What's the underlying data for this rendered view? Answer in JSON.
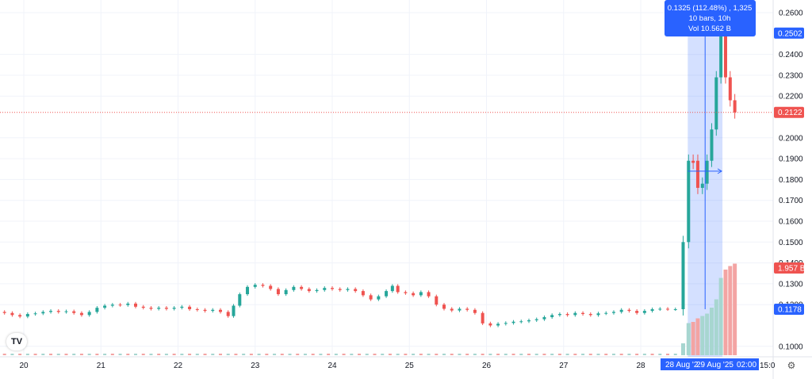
{
  "chart_data": {
    "type": "candlestick",
    "price_axis": {
      "ticks": [
        "0.2600",
        "0.2400",
        "0.2300",
        "0.2200",
        "0.2000",
        "0.1900",
        "0.1800",
        "0.1700",
        "0.1600",
        "0.1500",
        "0.1400",
        "0.1300",
        "0.1200",
        "0.1000"
      ],
      "ylim": [
        0.095,
        0.262
      ]
    },
    "time_axis": {
      "ticks": [
        "20",
        "21",
        "22",
        "23",
        "24",
        "25",
        "26",
        "27",
        "28"
      ],
      "range_labels": [
        "28 Aug '2",
        "29 Aug '25",
        "02:00",
        "15:0"
      ]
    },
    "price_tags": {
      "measure_high": "0.2502",
      "last_price": "0.2122",
      "measure_low": "0.1178",
      "volume": "1.957 B"
    },
    "measure_tooltip": {
      "line1": "0.1325 (112.48%) , 1,325",
      "line2": "10 bars, 10h",
      "line3": "Vol 10.562 B"
    },
    "candles": [
      {
        "d": 19.75,
        "o": 0.1165,
        "c": 0.116
      },
      {
        "d": 19.85,
        "o": 0.116,
        "c": 0.115
      },
      {
        "d": 19.95,
        "o": 0.115,
        "c": 0.1143
      },
      {
        "d": 20.05,
        "o": 0.1143,
        "c": 0.1155
      },
      {
        "d": 20.15,
        "o": 0.1155,
        "c": 0.1158
      },
      {
        "d": 20.25,
        "o": 0.1158,
        "c": 0.1165
      },
      {
        "d": 20.35,
        "o": 0.1165,
        "c": 0.117
      },
      {
        "d": 20.45,
        "o": 0.117,
        "c": 0.1165
      },
      {
        "d": 20.55,
        "o": 0.1165,
        "c": 0.1168
      },
      {
        "d": 20.65,
        "o": 0.1168,
        "c": 0.116
      },
      {
        "d": 20.75,
        "o": 0.116,
        "c": 0.115
      },
      {
        "d": 20.85,
        "o": 0.115,
        "c": 0.1165
      },
      {
        "d": 20.95,
        "o": 0.1165,
        "c": 0.1185
      },
      {
        "d": 21.05,
        "o": 0.1185,
        "c": 0.1195
      },
      {
        "d": 21.15,
        "o": 0.1195,
        "c": 0.12
      },
      {
        "d": 21.25,
        "o": 0.12,
        "c": 0.1198
      },
      {
        "d": 21.35,
        "o": 0.1198,
        "c": 0.1205
      },
      {
        "d": 21.45,
        "o": 0.1205,
        "c": 0.119
      },
      {
        "d": 21.55,
        "o": 0.119,
        "c": 0.1185
      },
      {
        "d": 21.65,
        "o": 0.1185,
        "c": 0.118
      },
      {
        "d": 21.75,
        "o": 0.118,
        "c": 0.1185
      },
      {
        "d": 21.85,
        "o": 0.1185,
        "c": 0.118
      },
      {
        "d": 21.95,
        "o": 0.118,
        "c": 0.1185
      },
      {
        "d": 22.05,
        "o": 0.1185,
        "c": 0.119
      },
      {
        "d": 22.15,
        "o": 0.119,
        "c": 0.1178
      },
      {
        "d": 22.25,
        "o": 0.1178,
        "c": 0.1175
      },
      {
        "d": 22.35,
        "o": 0.1175,
        "c": 0.117
      },
      {
        "d": 22.45,
        "o": 0.117,
        "c": 0.1175
      },
      {
        "d": 22.55,
        "o": 0.1175,
        "c": 0.1165
      },
      {
        "d": 22.65,
        "o": 0.1165,
        "c": 0.1145
      },
      {
        "d": 22.72,
        "o": 0.1145,
        "c": 0.1195
      },
      {
        "d": 22.8,
        "o": 0.1195,
        "c": 0.125
      },
      {
        "d": 22.9,
        "o": 0.125,
        "c": 0.1285
      },
      {
        "d": 23.0,
        "o": 0.1285,
        "c": 0.1295
      },
      {
        "d": 23.1,
        "o": 0.1295,
        "c": 0.129
      },
      {
        "d": 23.2,
        "o": 0.129,
        "c": 0.1275
      },
      {
        "d": 23.3,
        "o": 0.1275,
        "c": 0.125
      },
      {
        "d": 23.4,
        "o": 0.125,
        "c": 0.127
      },
      {
        "d": 23.5,
        "o": 0.127,
        "c": 0.1285
      },
      {
        "d": 23.6,
        "o": 0.1285,
        "c": 0.1275
      },
      {
        "d": 23.7,
        "o": 0.1275,
        "c": 0.1265
      },
      {
        "d": 23.8,
        "o": 0.1265,
        "c": 0.127
      },
      {
        "d": 23.9,
        "o": 0.127,
        "c": 0.128
      },
      {
        "d": 24.0,
        "o": 0.128,
        "c": 0.1275
      },
      {
        "d": 24.1,
        "o": 0.1275,
        "c": 0.127
      },
      {
        "d": 24.2,
        "o": 0.127,
        "c": 0.1275
      },
      {
        "d": 24.3,
        "o": 0.1275,
        "c": 0.1265
      },
      {
        "d": 24.4,
        "o": 0.1265,
        "c": 0.1245
      },
      {
        "d": 24.5,
        "o": 0.1245,
        "c": 0.1225
      },
      {
        "d": 24.6,
        "o": 0.1225,
        "c": 0.124
      },
      {
        "d": 24.7,
        "o": 0.124,
        "c": 0.1265
      },
      {
        "d": 24.78,
        "o": 0.1265,
        "c": 0.129
      },
      {
        "d": 24.85,
        "o": 0.129,
        "c": 0.126
      },
      {
        "d": 24.95,
        "o": 0.126,
        "c": 0.1255
      },
      {
        "d": 25.05,
        "o": 0.1255,
        "c": 0.1245
      },
      {
        "d": 25.15,
        "o": 0.1245,
        "c": 0.126
      },
      {
        "d": 25.25,
        "o": 0.126,
        "c": 0.124
      },
      {
        "d": 25.35,
        "o": 0.124,
        "c": 0.12
      },
      {
        "d": 25.45,
        "o": 0.12,
        "c": 0.118
      },
      {
        "d": 25.55,
        "o": 0.118,
        "c": 0.1172
      },
      {
        "d": 25.65,
        "o": 0.1172,
        "c": 0.118
      },
      {
        "d": 25.75,
        "o": 0.118,
        "c": 0.1175
      },
      {
        "d": 25.85,
        "o": 0.1175,
        "c": 0.116
      },
      {
        "d": 25.95,
        "o": 0.116,
        "c": 0.111
      },
      {
        "d": 26.05,
        "o": 0.111,
        "c": 0.11
      },
      {
        "d": 26.15,
        "o": 0.11,
        "c": 0.1108
      },
      {
        "d": 26.25,
        "o": 0.1108,
        "c": 0.1112
      },
      {
        "d": 26.35,
        "o": 0.1112,
        "c": 0.1118
      },
      {
        "d": 26.45,
        "o": 0.1118,
        "c": 0.112
      },
      {
        "d": 26.55,
        "o": 0.112,
        "c": 0.1125
      },
      {
        "d": 26.65,
        "o": 0.1125,
        "c": 0.113
      },
      {
        "d": 26.75,
        "o": 0.113,
        "c": 0.114
      },
      {
        "d": 26.85,
        "o": 0.114,
        "c": 0.115
      },
      {
        "d": 26.95,
        "o": 0.115,
        "c": 0.1155
      },
      {
        "d": 27.05,
        "o": 0.1155,
        "c": 0.115
      },
      {
        "d": 27.15,
        "o": 0.115,
        "c": 0.116
      },
      {
        "d": 27.25,
        "o": 0.116,
        "c": 0.1155
      },
      {
        "d": 27.35,
        "o": 0.1155,
        "c": 0.115
      },
      {
        "d": 27.45,
        "o": 0.115,
        "c": 0.1158
      },
      {
        "d": 27.55,
        "o": 0.1158,
        "c": 0.116
      },
      {
        "d": 27.65,
        "o": 0.116,
        "c": 0.1165
      },
      {
        "d": 27.75,
        "o": 0.1165,
        "c": 0.1175
      },
      {
        "d": 27.85,
        "o": 0.1175,
        "c": 0.117
      },
      {
        "d": 27.95,
        "o": 0.117,
        "c": 0.116
      },
      {
        "d": 28.05,
        "o": 0.116,
        "c": 0.117
      },
      {
        "d": 28.15,
        "o": 0.117,
        "c": 0.1178
      },
      {
        "d": 28.25,
        "o": 0.1178,
        "c": 0.118
      },
      {
        "d": 28.35,
        "o": 0.118,
        "c": 0.1178
      },
      {
        "d": 28.45,
        "o": 0.1178,
        "c": 0.1178
      },
      {
        "d": 28.55,
        "o": 0.1178,
        "c": 0.15
      },
      {
        "d": 28.62,
        "o": 0.15,
        "c": 0.189
      },
      {
        "d": 28.68,
        "o": 0.189,
        "c": 0.188
      },
      {
        "d": 28.74,
        "o": 0.189,
        "c": 0.176
      },
      {
        "d": 28.8,
        "o": 0.176,
        "c": 0.178
      },
      {
        "d": 28.86,
        "o": 0.178,
        "c": 0.189
      },
      {
        "d": 28.92,
        "o": 0.189,
        "c": 0.204
      },
      {
        "d": 28.98,
        "o": 0.204,
        "c": 0.229
      },
      {
        "d": 29.04,
        "o": 0.229,
        "c": 0.2502
      },
      {
        "d": 29.1,
        "o": 0.2502,
        "c": 0.229
      },
      {
        "d": 29.16,
        "o": 0.229,
        "c": 0.218
      },
      {
        "d": 29.22,
        "o": 0.218,
        "c": 0.2122
      }
    ],
    "volume": [
      {
        "d": 28.55,
        "v": 0.1
      },
      {
        "d": 28.62,
        "v": 0.27
      },
      {
        "d": 28.68,
        "v": 0.28
      },
      {
        "d": 28.74,
        "v": 0.31
      },
      {
        "d": 28.8,
        "v": 0.33
      },
      {
        "d": 28.86,
        "v": 0.35
      },
      {
        "d": 28.92,
        "v": 0.4
      },
      {
        "d": 28.98,
        "v": 0.47
      },
      {
        "d": 29.04,
        "v": 0.65
      },
      {
        "d": 29.1,
        "v": 0.72
      },
      {
        "d": 29.16,
        "v": 0.75
      },
      {
        "d": 29.22,
        "v": 0.77
      }
    ]
  },
  "colors": {
    "up": "#26a69a",
    "down": "#ef5350",
    "accent": "#2962ff",
    "vol_up": "#a7d6d0",
    "vol_down": "#f3a4a3"
  }
}
